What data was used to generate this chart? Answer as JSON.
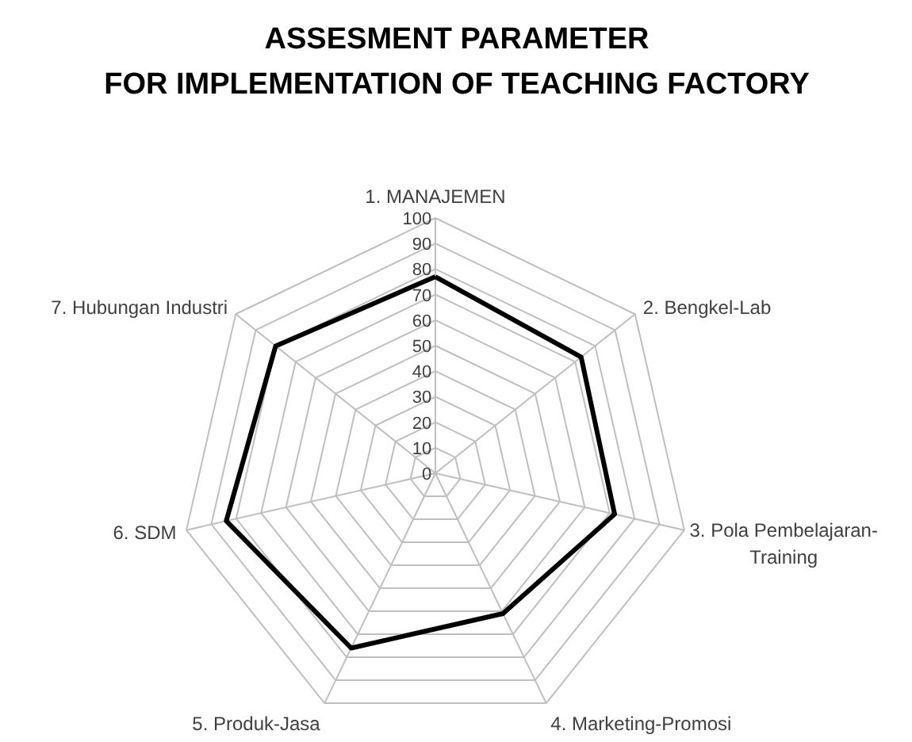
{
  "chart_data": {
    "type": "radar",
    "title": "ASSESMENT PARAMETER\nFOR IMPLEMENTATION OF TEACHING FACTORY",
    "categories": [
      "1. MANAJEMEN",
      "2. Bengkel-Lab",
      "3. Pola Pembelajaran-\nTraining",
      "4. Marketing-Promosi",
      "5. Produk-Jasa",
      "6. SDM",
      "7. Hubungan Industri"
    ],
    "series": [
      {
        "color": "#000000",
        "values": [
          77,
          73,
          72,
          61,
          76,
          84,
          80
        ]
      }
    ],
    "ylim": [
      0,
      100
    ],
    "yticks": [
      0,
      10,
      20,
      30,
      40,
      50,
      60,
      70,
      80,
      90,
      100
    ],
    "grid": true,
    "marker": "none",
    "line_style": "solid"
  }
}
